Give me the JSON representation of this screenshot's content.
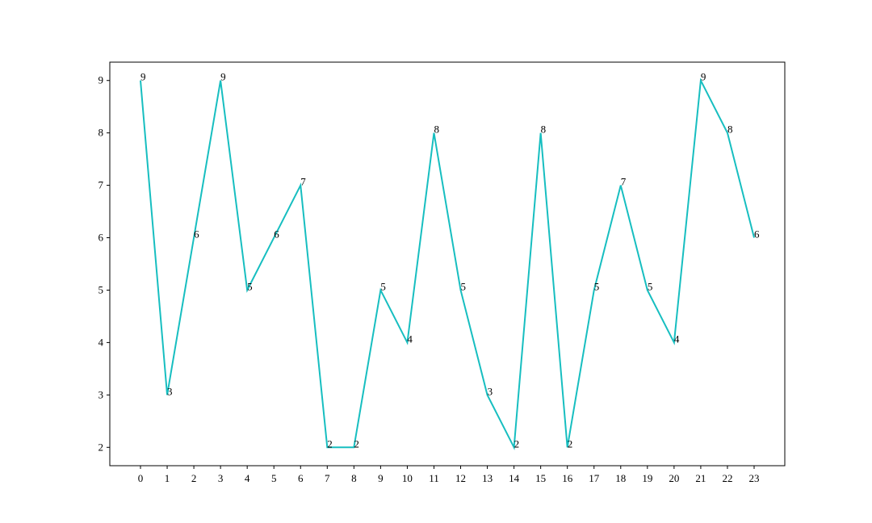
{
  "chart_data": {
    "type": "line",
    "x": [
      0,
      1,
      2,
      3,
      4,
      5,
      6,
      7,
      8,
      9,
      10,
      11,
      12,
      13,
      14,
      15,
      16,
      17,
      18,
      19,
      20,
      21,
      22,
      23
    ],
    "values": [
      9,
      3,
      6,
      9,
      5,
      6,
      7,
      2,
      2,
      5,
      4,
      8,
      5,
      3,
      2,
      8,
      2,
      5,
      7,
      5,
      4,
      9,
      8,
      6
    ],
    "color": "#17bec0",
    "xlim": [
      -1.15,
      24.15
    ],
    "ylim": [
      1.65,
      9.35
    ],
    "xticks": [
      0,
      1,
      2,
      3,
      4,
      5,
      6,
      7,
      8,
      9,
      10,
      11,
      12,
      13,
      14,
      15,
      16,
      17,
      18,
      19,
      20,
      21,
      22,
      23
    ],
    "yticks": [
      2,
      3,
      4,
      5,
      6,
      7,
      8,
      9
    ]
  }
}
